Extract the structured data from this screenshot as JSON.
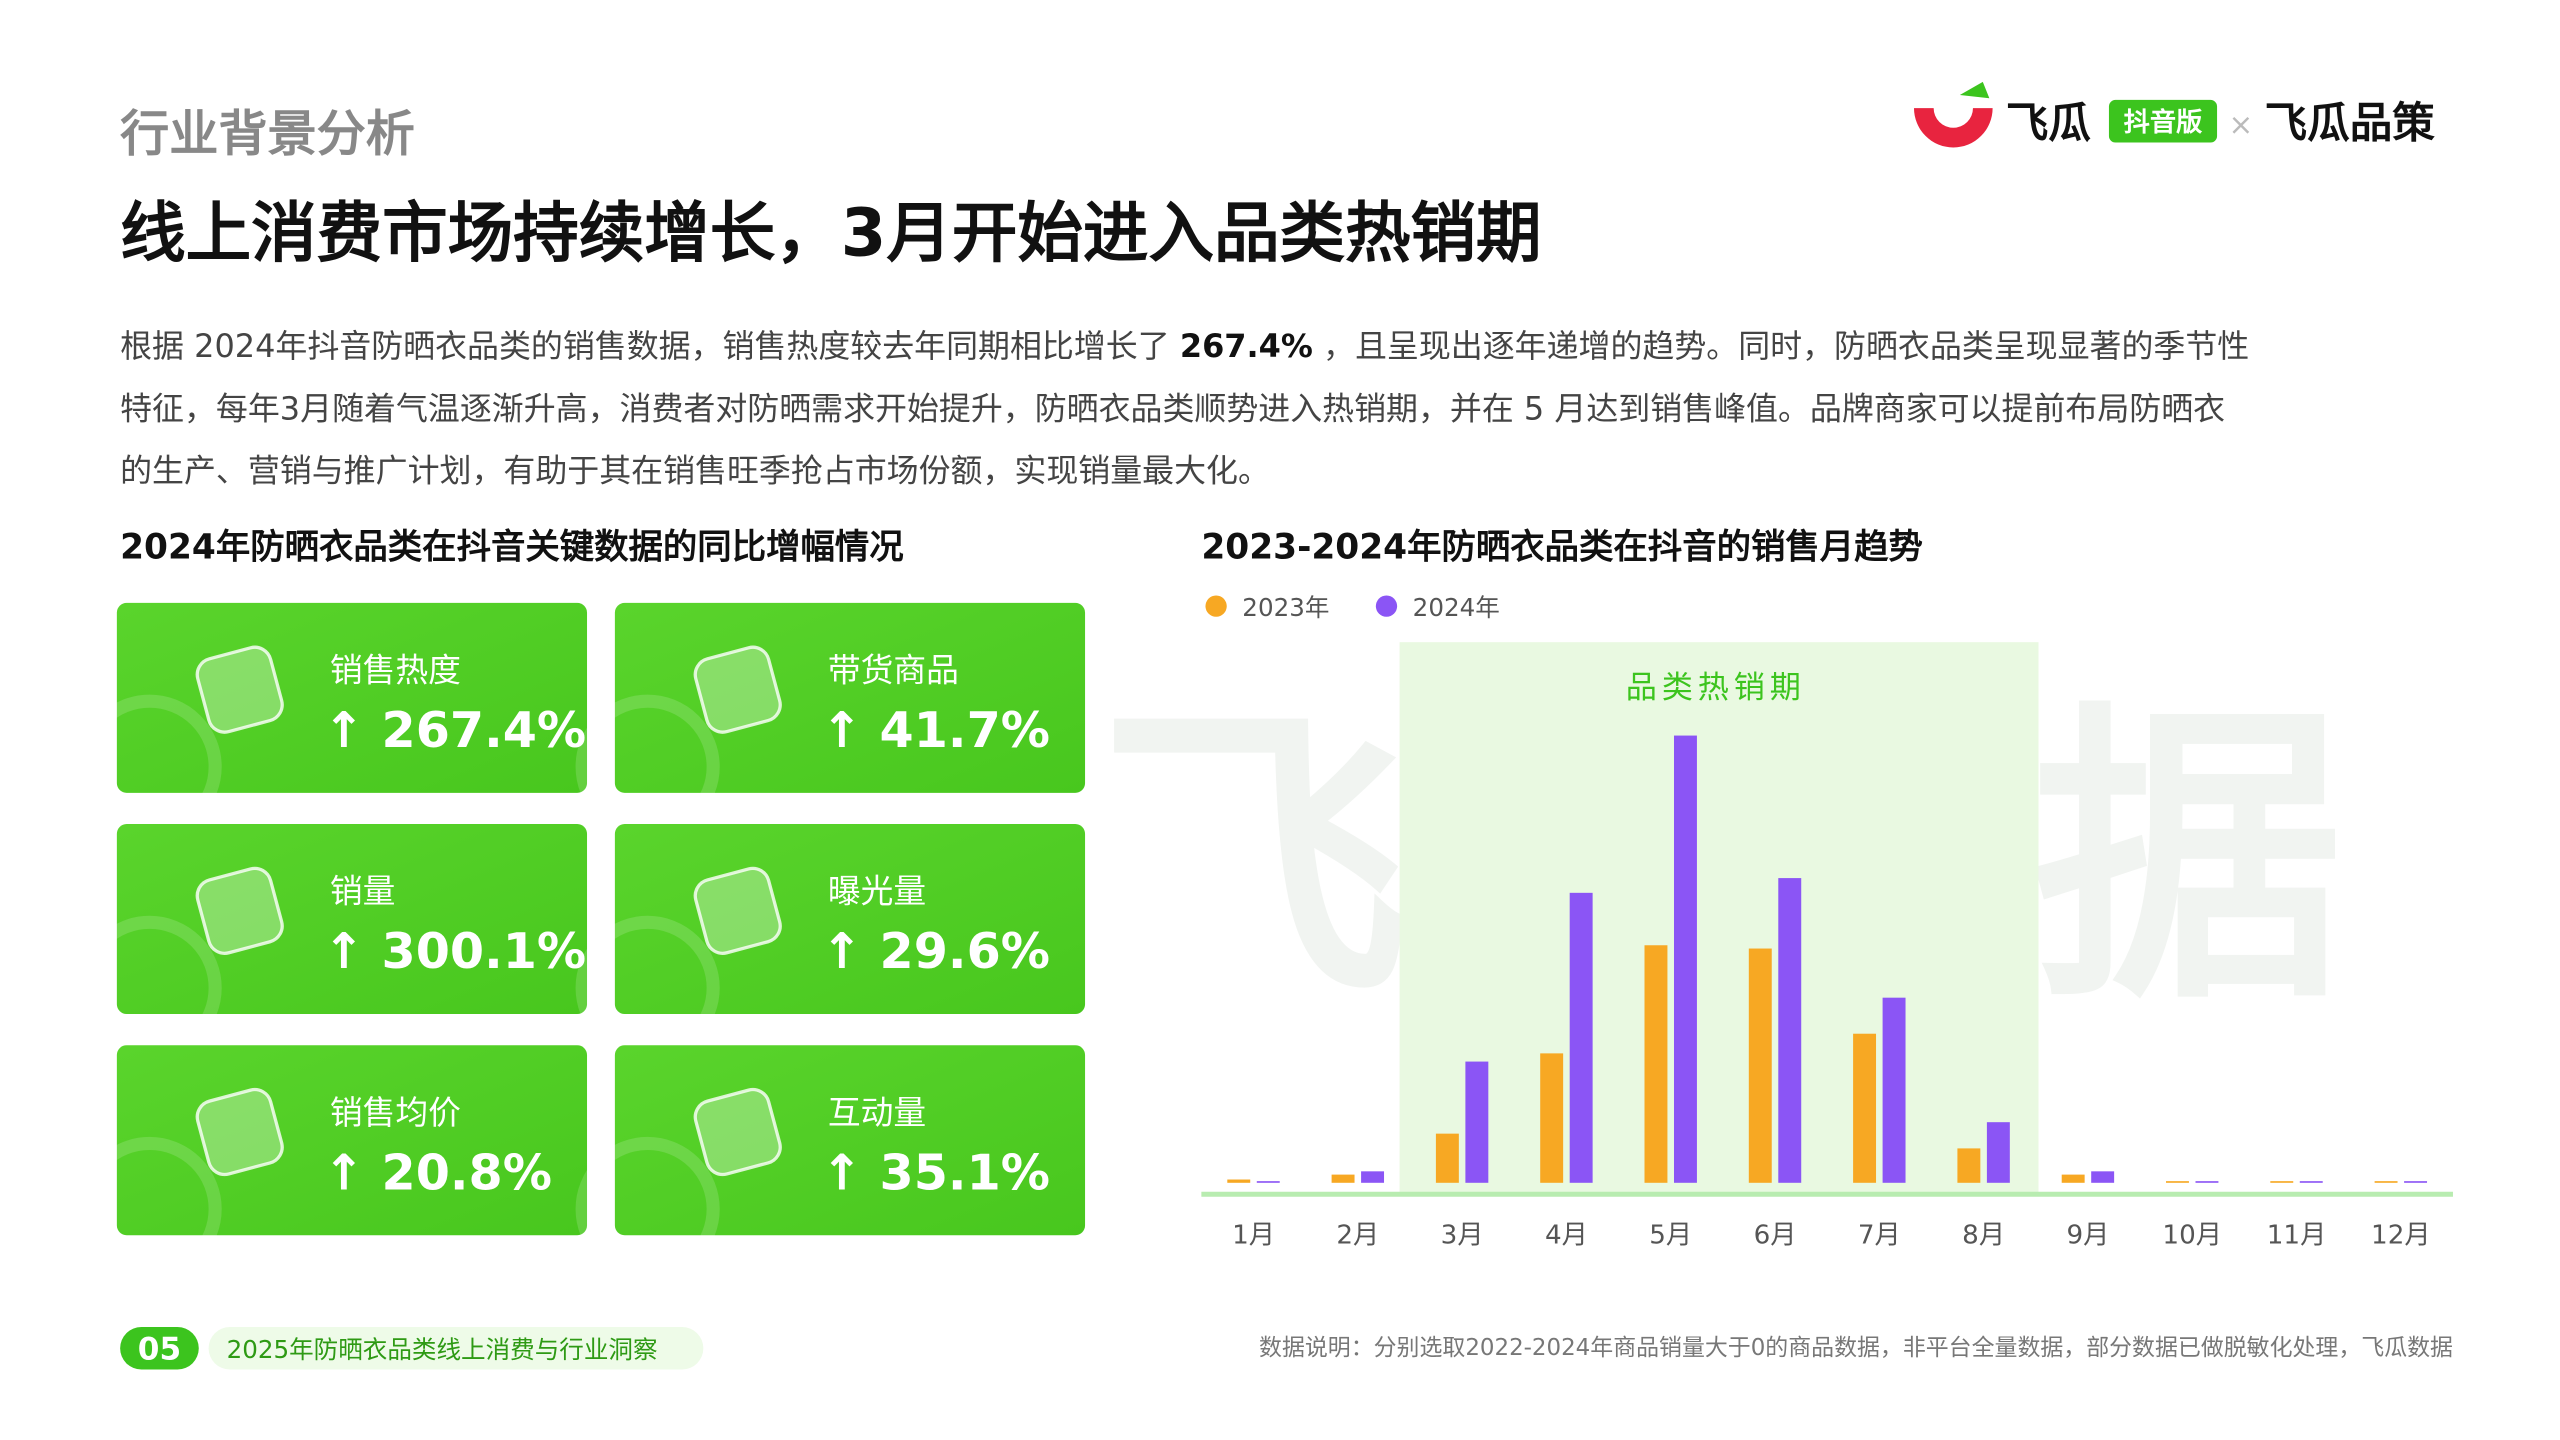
{
  "header": {
    "section": "行业背景分析",
    "title": "线上消费市场持续增长，3月开始进入品类热销期",
    "logo": {
      "brand": "飞瓜",
      "badge": "抖音版",
      "separator": "×",
      "partner": "飞瓜品策"
    }
  },
  "paragraph": {
    "lines": [
      [
        "根据 2024年抖音防晒衣品类的销售数据，销售热度较去年同期相比增长了 ",
        "267.4%",
        " ，且呈现出逐年递增的趋势。同时，防晒衣品类呈现显著的季节性"
      ],
      [
        "特征，每年3月随着气温逐渐升高，消费者对防晒需求开始提升，防晒衣品类顺势进入热销期，并在 5 月达到销售峰值。品牌商家可以提前布局防晒衣"
      ],
      [
        "的生产、营销与推广计划，有助于其在销售旺季抢占市场份额，实现销量最大化。"
      ]
    ]
  },
  "cards": {
    "title": "2024年防晒衣品类在抖音关键数据的同比增幅情况",
    "items": [
      {
        "label": "销售热度",
        "value": "↑ 267.4%"
      },
      {
        "label": "带货商品",
        "value": "↑ 41.7%"
      },
      {
        "label": "销量",
        "value": "↑ 300.1%"
      },
      {
        "label": "曝光量",
        "value": "↑ 29.6%"
      },
      {
        "label": "销售均价",
        "value": "↑ 20.8%"
      },
      {
        "label": "互动量",
        "value": "↑ 35.1%"
      }
    ]
  },
  "watermark": "飞瓜数据",
  "chart_data": {
    "type": "bar",
    "title": "2023-2024年防晒衣品类在抖音的销售月趋势",
    "annotation": "品类热销期",
    "categories": [
      "1月",
      "2月",
      "3月",
      "4月",
      "5月",
      "6月",
      "7月",
      "8月",
      "9月",
      "10月",
      "11月",
      "12月"
    ],
    "series": [
      {
        "name": "2023年",
        "color": "#f7a823",
        "values": [
          2,
          5,
          30,
          79,
          145,
          143,
          91,
          21,
          5,
          1,
          1,
          1
        ]
      },
      {
        "name": "2024年",
        "color": "#8b55f5",
        "values": [
          1,
          7,
          74,
          177,
          273,
          186,
          113,
          37,
          7,
          1,
          1,
          1
        ]
      }
    ],
    "ylim": [
      0,
      300
    ],
    "legend": "top-left"
  },
  "footer": {
    "page": "05",
    "report": "2025年防晒衣品类线上消费与行业洞察",
    "note": "数据说明：分别选取2022-2024年商品销量大于0的商品数据，非平台全量数据，部分数据已做脱敏化处理，飞瓜数据"
  }
}
